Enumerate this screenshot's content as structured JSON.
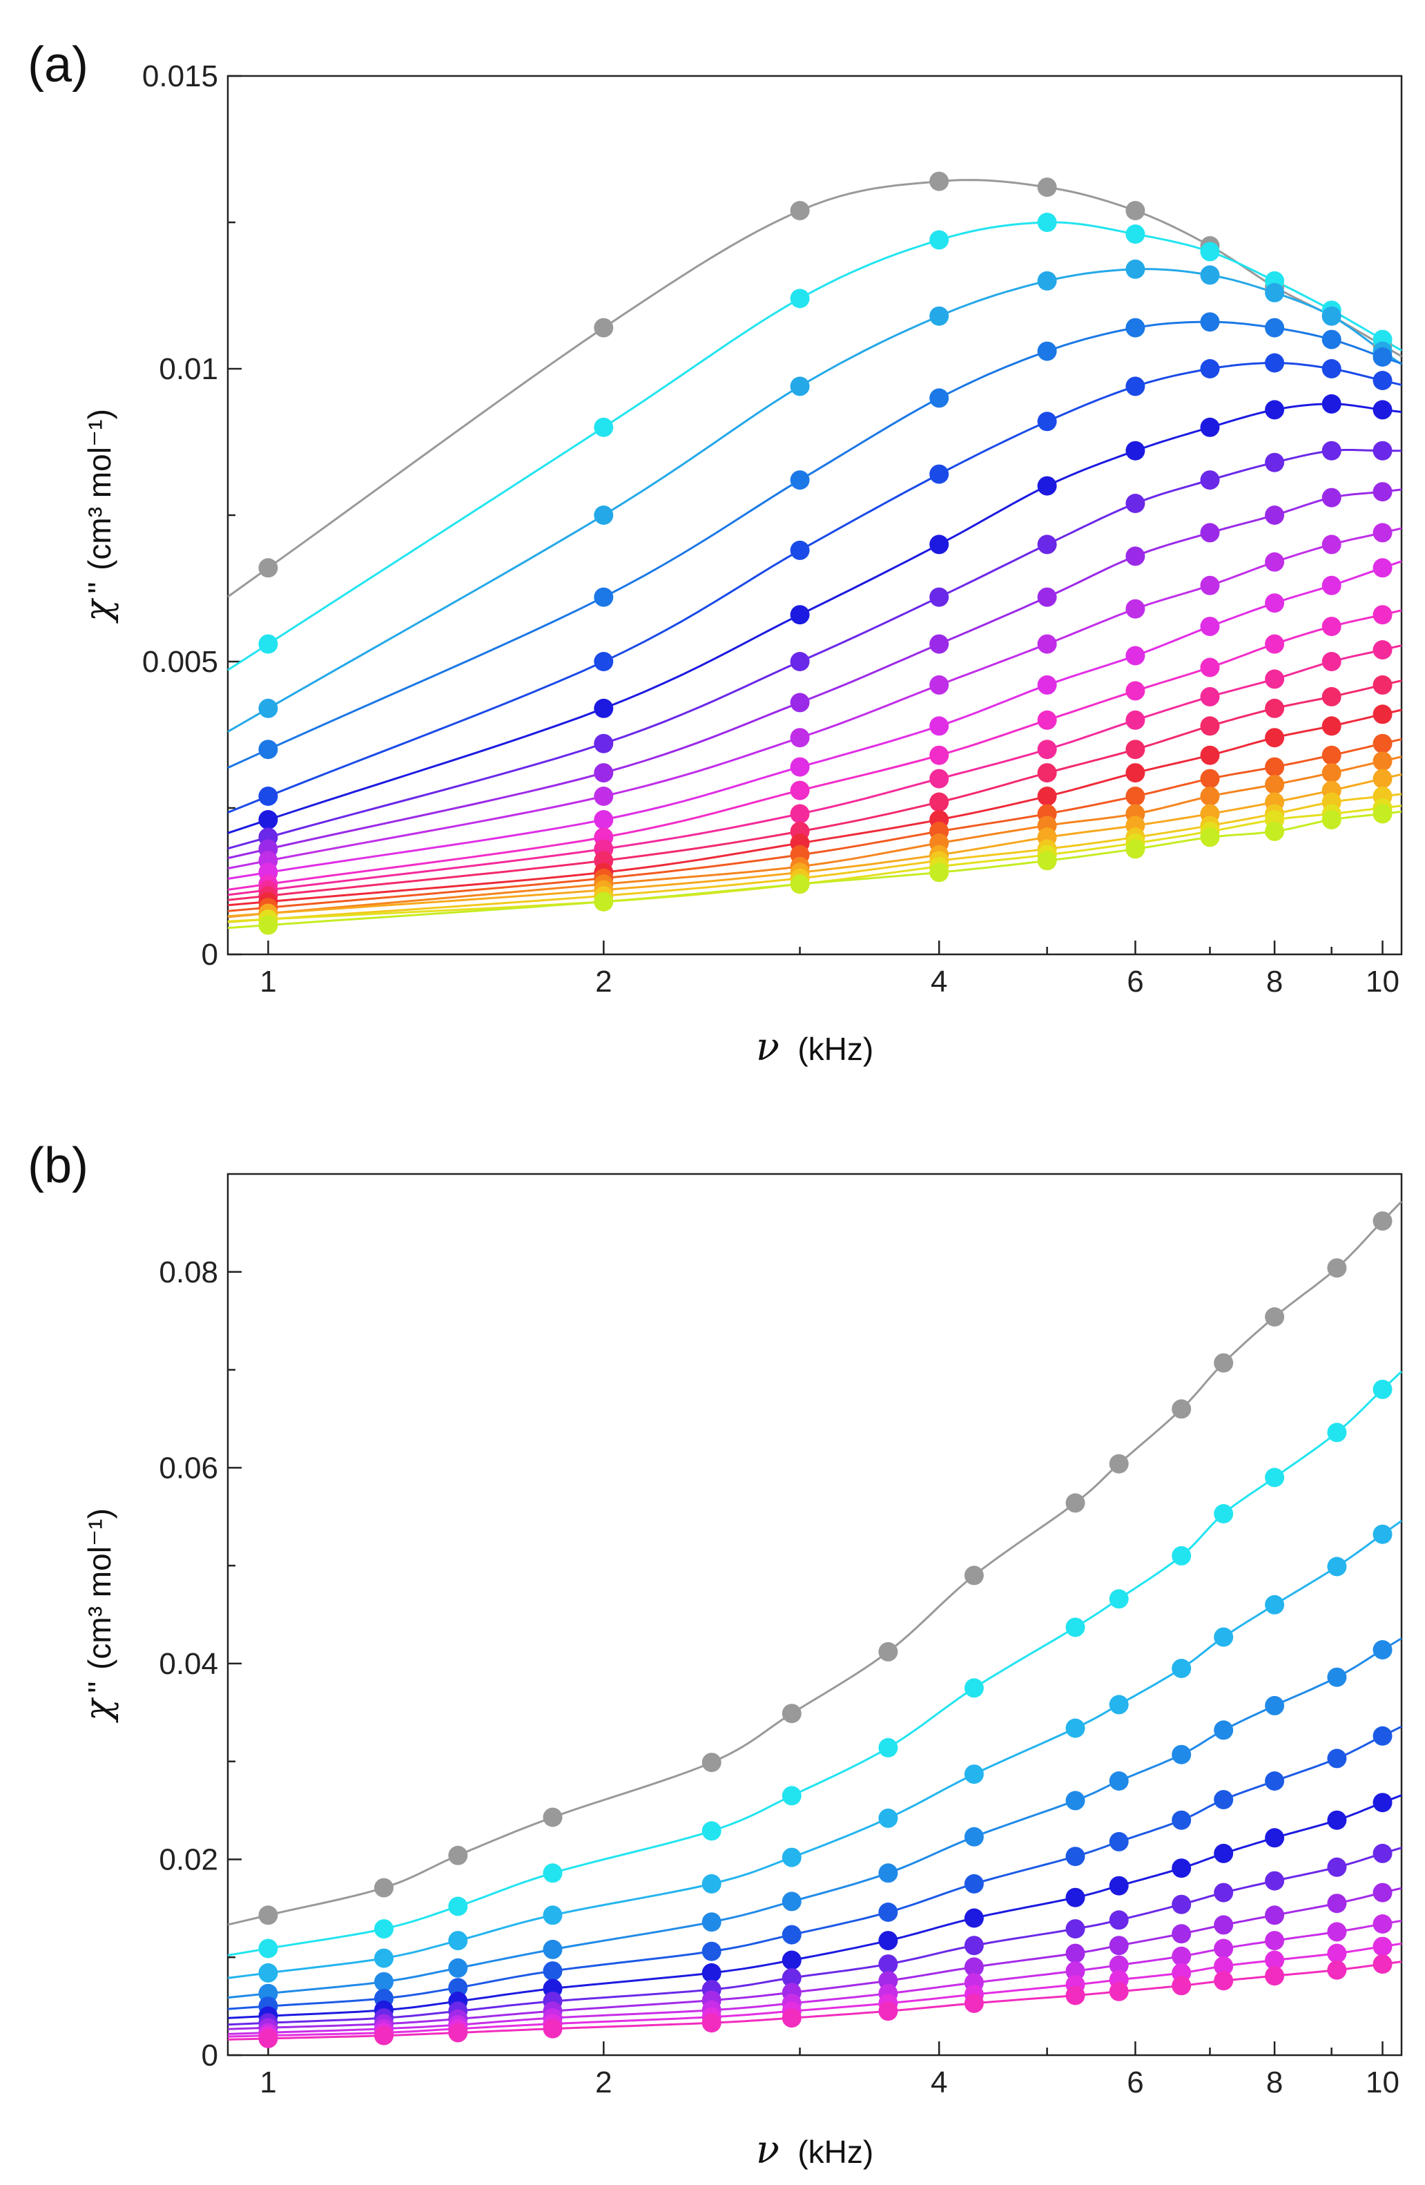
{
  "chart_data": [
    {
      "panel_label": "(a)",
      "type": "scatter",
      "xscale": "log",
      "xlim": [
        0.92,
        10.4
      ],
      "ylim": [
        0,
        0.015
      ],
      "xticks": [
        1,
        2,
        4,
        6,
        8,
        10
      ],
      "xtick_labels": [
        "1",
        "2",
        "4",
        "6",
        "8",
        "10"
      ],
      "yticks": [
        0,
        0.005,
        0.01,
        0.015
      ],
      "ytick_labels": [
        "0",
        "0.005",
        "0.01",
        "0.015"
      ],
      "xlabel_symbol": "ν",
      "xlabel_unit": "(kHz)",
      "ylabel_symbol": "χ",
      "ylabel_prime": "''",
      "ylabel_unit": "(cm³ mol⁻¹)",
      "x": [
        1.0,
        2.0,
        3.0,
        4.0,
        5.0,
        6.0,
        7.0,
        8.0,
        9.0,
        10.0
      ],
      "series": [
        {
          "color": "#999999",
          "y": [
            0.0066,
            0.0107,
            0.0127,
            0.0132,
            0.0131,
            0.0127,
            0.0121,
            0.0114,
            0.0109,
            0.0104
          ]
        },
        {
          "color": "#22e4f0",
          "y": [
            0.0053,
            0.009,
            0.0112,
            0.0122,
            0.0125,
            0.0123,
            0.012,
            0.0115,
            0.011,
            0.0105
          ]
        },
        {
          "color": "#24a8e8",
          "y": [
            0.0042,
            0.0075,
            0.0097,
            0.0109,
            0.0115,
            0.0117,
            0.0116,
            0.0113,
            0.0109,
            0.0103
          ]
        },
        {
          "color": "#1b78e6",
          "y": [
            0.0035,
            0.0061,
            0.0081,
            0.0095,
            0.0103,
            0.0107,
            0.0108,
            0.0107,
            0.0105,
            0.0102
          ]
        },
        {
          "color": "#1a4ae8",
          "y": [
            0.0027,
            0.005,
            0.0069,
            0.0082,
            0.0091,
            0.0097,
            0.01,
            0.0101,
            0.01,
            0.0098
          ]
        },
        {
          "color": "#1c1ae0",
          "y": [
            0.0023,
            0.0042,
            0.0058,
            0.007,
            0.008,
            0.0086,
            0.009,
            0.0093,
            0.0094,
            0.0093
          ]
        },
        {
          "color": "#6a28e8",
          "y": [
            0.002,
            0.0036,
            0.005,
            0.0061,
            0.007,
            0.0077,
            0.0081,
            0.0084,
            0.0086,
            0.0086
          ]
        },
        {
          "color": "#9b2ae8",
          "y": [
            0.0018,
            0.0031,
            0.0043,
            0.0053,
            0.0061,
            0.0068,
            0.0072,
            0.0075,
            0.0078,
            0.0079
          ]
        },
        {
          "color": "#c02ee8",
          "y": [
            0.0016,
            0.0027,
            0.0037,
            0.0046,
            0.0053,
            0.0059,
            0.0063,
            0.0067,
            0.007,
            0.0072
          ]
        },
        {
          "color": "#e02ee6",
          "y": [
            0.0014,
            0.0023,
            0.0032,
            0.0039,
            0.0046,
            0.0051,
            0.0056,
            0.006,
            0.0063,
            0.0066
          ]
        },
        {
          "color": "#f22cc8",
          "y": [
            0.0012,
            0.002,
            0.0028,
            0.0034,
            0.004,
            0.0045,
            0.0049,
            0.0053,
            0.0056,
            0.0058
          ]
        },
        {
          "color": "#f42a9a",
          "y": [
            0.0011,
            0.0018,
            0.0024,
            0.003,
            0.0035,
            0.004,
            0.0044,
            0.0047,
            0.005,
            0.0052
          ]
        },
        {
          "color": "#f22a6a",
          "y": [
            0.001,
            0.0016,
            0.0021,
            0.0026,
            0.0031,
            0.0035,
            0.0039,
            0.0042,
            0.0044,
            0.0046
          ]
        },
        {
          "color": "#ee2a3a",
          "y": [
            0.0009,
            0.0014,
            0.0019,
            0.0023,
            0.0027,
            0.0031,
            0.0034,
            0.0037,
            0.0039,
            0.0041
          ]
        },
        {
          "color": "#f25a20",
          "y": [
            0.0008,
            0.0013,
            0.0017,
            0.0021,
            0.0024,
            0.0027,
            0.003,
            0.0032,
            0.0034,
            0.0036
          ]
        },
        {
          "color": "#f5841e",
          "y": [
            0.0007,
            0.0012,
            0.0015,
            0.0019,
            0.0022,
            0.0024,
            0.0027,
            0.0029,
            0.0031,
            0.0033
          ]
        },
        {
          "color": "#f7a81e",
          "y": [
            0.0007,
            0.0011,
            0.0014,
            0.0017,
            0.002,
            0.0022,
            0.0024,
            0.0026,
            0.0028,
            0.003
          ]
        },
        {
          "color": "#f2c81e",
          "y": [
            0.0006,
            0.001,
            0.0013,
            0.0016,
            0.0018,
            0.002,
            0.0022,
            0.0024,
            0.0026,
            0.0027
          ]
        },
        {
          "color": "#e4e01e",
          "y": [
            0.0006,
            0.0009,
            0.0012,
            0.0015,
            0.0017,
            0.0019,
            0.0021,
            0.0023,
            0.0024,
            0.0025
          ]
        },
        {
          "color": "#c6ec22",
          "y": [
            0.0005,
            0.0009,
            0.0012,
            0.0014,
            0.0016,
            0.0018,
            0.002,
            0.0021,
            0.0023,
            0.0024
          ]
        }
      ]
    },
    {
      "panel_label": "(b)",
      "type": "scatter",
      "xscale": "log",
      "xlim": [
        0.92,
        10.4
      ],
      "ylim": [
        0,
        0.09
      ],
      "xticks": [
        1,
        2,
        4,
        6,
        8,
        10
      ],
      "xtick_labels": [
        "1",
        "2",
        "4",
        "6",
        "8",
        "10"
      ],
      "yticks": [
        0,
        0.02,
        0.04,
        0.06,
        0.08
      ],
      "ytick_labels": [
        "0",
        "0.02",
        "0.04",
        "0.06",
        "0.08"
      ],
      "xlabel_symbol": "ν",
      "xlabel_unit": "(kHz)",
      "ylabel_symbol": "χ",
      "ylabel_prime": "''",
      "ylabel_unit": "(cm³ mol⁻¹)",
      "x": [
        1.0,
        1.27,
        1.48,
        1.8,
        2.5,
        2.95,
        3.6,
        4.3,
        5.3,
        5.8,
        6.6,
        7.2,
        8.0,
        9.1,
        10.0
      ],
      "series": [
        {
          "color": "#999999",
          "y": [
            0.0143,
            0.0171,
            0.0204,
            0.0243,
            0.0299,
            0.0349,
            0.0412,
            0.049,
            0.0564,
            0.0604,
            0.066,
            0.0707,
            0.0754,
            0.0804,
            0.0852
          ]
        },
        {
          "color": "#22e4f0",
          "y": [
            0.0109,
            0.0129,
            0.0152,
            0.0186,
            0.0229,
            0.0265,
            0.0314,
            0.0375,
            0.0437,
            0.0466,
            0.051,
            0.0553,
            0.059,
            0.0636,
            0.068
          ]
        },
        {
          "color": "#24b4ee",
          "y": [
            0.0084,
            0.0099,
            0.0117,
            0.0143,
            0.0175,
            0.0202,
            0.0242,
            0.0287,
            0.0334,
            0.0358,
            0.0395,
            0.0427,
            0.046,
            0.0499,
            0.0532
          ]
        },
        {
          "color": "#208ae8",
          "y": [
            0.0063,
            0.0075,
            0.0089,
            0.0108,
            0.0136,
            0.0157,
            0.0186,
            0.0223,
            0.026,
            0.028,
            0.0307,
            0.0332,
            0.0357,
            0.0386,
            0.0414
          ]
        },
        {
          "color": "#1c5ae6",
          "y": [
            0.005,
            0.0058,
            0.0069,
            0.0086,
            0.0106,
            0.0123,
            0.0146,
            0.0175,
            0.0203,
            0.0218,
            0.024,
            0.0261,
            0.028,
            0.0303,
            0.0326
          ]
        },
        {
          "color": "#1c1ae0",
          "y": [
            0.004,
            0.0046,
            0.0055,
            0.0068,
            0.0084,
            0.0097,
            0.0117,
            0.014,
            0.0161,
            0.0173,
            0.0191,
            0.0206,
            0.0222,
            0.024,
            0.0258
          ]
        },
        {
          "color": "#6a28e8",
          "y": [
            0.0033,
            0.0038,
            0.0045,
            0.0055,
            0.0067,
            0.0079,
            0.0093,
            0.0112,
            0.0129,
            0.0138,
            0.0154,
            0.0166,
            0.0178,
            0.0192,
            0.0206
          ]
        },
        {
          "color": "#a22ae8",
          "y": [
            0.0028,
            0.0032,
            0.0037,
            0.0045,
            0.0056,
            0.0064,
            0.0076,
            0.009,
            0.0104,
            0.0112,
            0.0124,
            0.0133,
            0.0143,
            0.0155,
            0.0166
          ]
        },
        {
          "color": "#c82ee8",
          "y": [
            0.0023,
            0.0027,
            0.0031,
            0.0038,
            0.0046,
            0.0053,
            0.0063,
            0.0074,
            0.0086,
            0.0092,
            0.0101,
            0.0109,
            0.0117,
            0.0126,
            0.0134
          ]
        },
        {
          "color": "#e42ee2",
          "y": [
            0.002,
            0.0023,
            0.0027,
            0.0032,
            0.0039,
            0.0045,
            0.0053,
            0.0062,
            0.0072,
            0.0077,
            0.0084,
            0.0091,
            0.0097,
            0.0104,
            0.0111
          ]
        },
        {
          "color": "#f22cbe",
          "y": [
            0.0017,
            0.002,
            0.0023,
            0.0027,
            0.0033,
            0.0038,
            0.0045,
            0.0053,
            0.0061,
            0.0065,
            0.0071,
            0.0076,
            0.0081,
            0.0087,
            0.0093
          ]
        }
      ]
    }
  ]
}
